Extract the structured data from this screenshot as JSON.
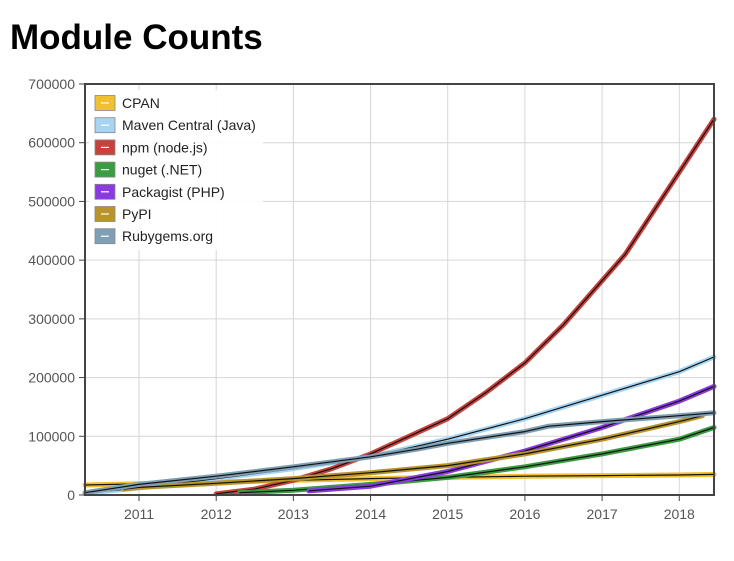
{
  "header": {
    "title": "Module Counts"
  },
  "chart_data": {
    "type": "line",
    "title": "Module Counts",
    "xlabel": "",
    "ylabel": "",
    "xlim": [
      2010.3,
      2018.45
    ],
    "ylim": [
      0,
      700000
    ],
    "x_ticks": [
      2011,
      2012,
      2013,
      2014,
      2015,
      2016,
      2017,
      2018
    ],
    "x_tick_labels": [
      "2011",
      "2012",
      "2013",
      "2014",
      "2015",
      "2016",
      "2017",
      "2018"
    ],
    "y_ticks": [
      0,
      100000,
      200000,
      300000,
      400000,
      500000,
      600000,
      700000
    ],
    "y_tick_labels": [
      "0",
      "100000",
      "200000",
      "300000",
      "400000",
      "500000",
      "600000",
      "700000"
    ],
    "grid": true,
    "legend_position": "top-left",
    "series": [
      {
        "name": "CPAN",
        "color": "#f0c030",
        "x": [
          2010.3,
          2011,
          2012,
          2013,
          2014,
          2015,
          2016,
          2017,
          2018,
          2018.45
        ],
        "values": [
          17000,
          19000,
          22000,
          25000,
          28000,
          30000,
          32000,
          33000,
          34000,
          35000
        ]
      },
      {
        "name": "Maven Central (Java)",
        "color": "#a6d4f2",
        "x": [
          2010.3,
          2011,
          2012,
          2013,
          2014,
          2015,
          2016,
          2017,
          2018,
          2018.45
        ],
        "values": [
          3000,
          12000,
          28000,
          45000,
          65000,
          95000,
          130000,
          170000,
          210000,
          235000
        ]
      },
      {
        "name": "npm (node.js)",
        "color": "#c8413c",
        "x": [
          2012,
          2012.5,
          2013,
          2013.5,
          2014,
          2014.5,
          2015,
          2015.5,
          2016,
          2016.5,
          2017,
          2017.3,
          2017.5,
          2018,
          2018.45
        ],
        "values": [
          2000,
          10000,
          25000,
          45000,
          70000,
          100000,
          130000,
          175000,
          225000,
          290000,
          365000,
          410000,
          450000,
          550000,
          640000
        ]
      },
      {
        "name": "nuget (.NET)",
        "color": "#3c9c42",
        "x": [
          2012.3,
          2013,
          2014,
          2015,
          2016,
          2017,
          2018,
          2018.45
        ],
        "values": [
          4000,
          8000,
          18000,
          30000,
          48000,
          70000,
          95000,
          115000
        ]
      },
      {
        "name": "Packagist (PHP)",
        "color": "#8a3ae0",
        "x": [
          2013.2,
          2014,
          2015,
          2016,
          2017,
          2018,
          2018.45
        ],
        "values": [
          7000,
          15000,
          40000,
          75000,
          115000,
          160000,
          185000
        ]
      },
      {
        "name": "PyPI",
        "color": "#b8942a",
        "x": [
          2010.8,
          2011,
          2012,
          2013,
          2014,
          2015,
          2016,
          2017,
          2018,
          2018.3
        ],
        "values": [
          10000,
          13000,
          20000,
          28000,
          38000,
          50000,
          70000,
          95000,
          125000,
          135000
        ]
      },
      {
        "name": "Rubygems.org",
        "color": "#7f9fb4",
        "x": [
          2010.3,
          2011,
          2012,
          2013,
          2014,
          2014.6,
          2015,
          2016,
          2016.3,
          2017,
          2018,
          2018.45
        ],
        "values": [
          4000,
          18000,
          32000,
          48000,
          65000,
          78000,
          88000,
          108000,
          117000,
          125000,
          135000,
          140000
        ]
      }
    ]
  }
}
